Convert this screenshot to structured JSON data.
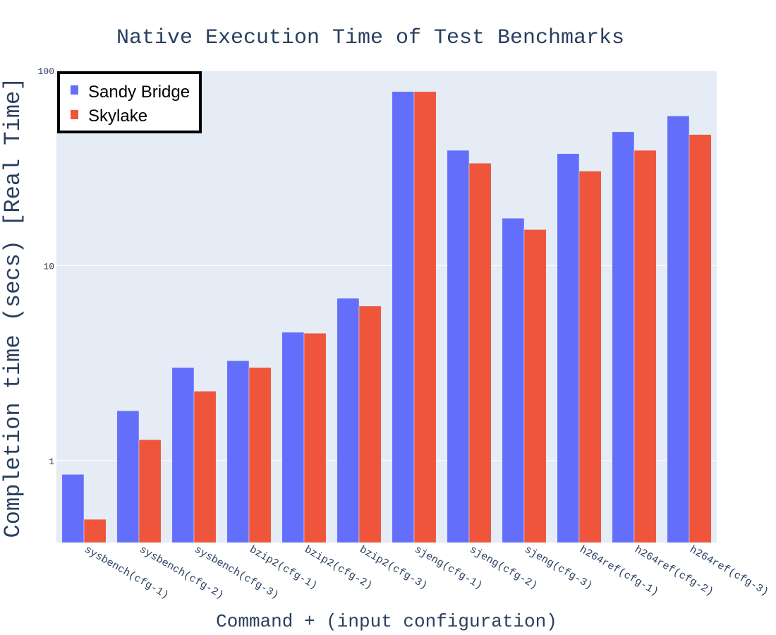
{
  "chart_data": {
    "type": "bar",
    "title": "Native Execution Time of Test Benchmarks",
    "xlabel": "Command + (input configuration)",
    "ylabel": "Completion time (secs) [Real Time]",
    "y_scale": "log",
    "ylim": [
      0.38,
      100
    ],
    "yticks": [
      {
        "value": 1,
        "label": "1"
      },
      {
        "value": 10,
        "label": "10"
      },
      {
        "value": 100,
        "label": "100"
      }
    ],
    "grid": true,
    "legend_position": "top-left",
    "categories": [
      "sysbench(cfg-1)",
      "sysbench(cfg-2)",
      "sysbench(cfg-3)",
      "bzip2(cfg-1)",
      "bzip2(cfg-2)",
      "bzip2(cfg-3)",
      "sjeng(cfg-1)",
      "sjeng(cfg-2)",
      "sjeng(cfg-3)",
      "h264ref(cfg-1)",
      "h264ref(cfg-2)",
      "h264ref(cfg-3)"
    ],
    "series": [
      {
        "name": "Sandy Bridge",
        "color": "#636efa",
        "values": [
          0.85,
          1.8,
          3.0,
          3.25,
          4.55,
          6.8,
          78,
          39,
          17.5,
          37.5,
          48.5,
          58.5
        ]
      },
      {
        "name": "Skylake",
        "color": "#ef553b",
        "values": [
          0.5,
          1.28,
          2.27,
          3.0,
          4.5,
          6.2,
          78,
          33.5,
          15.3,
          30.5,
          39,
          47
        ]
      }
    ],
    "plot_background": "#e5ecf6",
    "text_color": "#2a3f5f"
  }
}
